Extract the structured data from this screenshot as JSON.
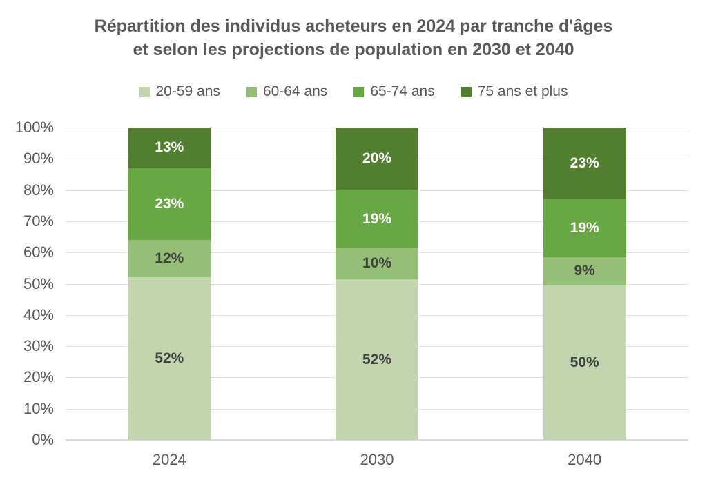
{
  "title": {
    "text": "Répartition des individus acheteurs en 2024  par tranche d'âges\net selon les projections de population en 2030 et 2040",
    "color": "#595959"
  },
  "chart_data": {
    "type": "bar",
    "variant": "stacked-100",
    "title": "Répartition des individus acheteurs en 2024  par tranche d'âges et selon les projections de population en 2030 et 2040",
    "categories": [
      "2024",
      "2030",
      "2040"
    ],
    "series": [
      {
        "name": "20-59 ans",
        "color": "#c3d5ae",
        "label_color": "#404040",
        "values": [
          52,
          52,
          50
        ],
        "labels": [
          "52%",
          "52%",
          "50%"
        ]
      },
      {
        "name": "60-64 ans",
        "color": "#95bf77",
        "label_color": "#404040",
        "values": [
          12,
          10,
          9
        ],
        "labels": [
          "12%",
          "10%",
          "9%"
        ]
      },
      {
        "name": "65-74 ans",
        "color": "#67a744",
        "label_color": "#ffffff",
        "values": [
          23,
          19,
          19
        ],
        "labels": [
          "23%",
          "19%",
          "19%"
        ]
      },
      {
        "name": "75 ans et plus",
        "color": "#527e30",
        "label_color": "#ffffff",
        "values": [
          13,
          20,
          23
        ],
        "labels": [
          "13%",
          "20%",
          "23%"
        ]
      }
    ],
    "y_axis": {
      "ticks": [
        "0%",
        "10%",
        "20%",
        "30%",
        "40%",
        "50%",
        "60%",
        "70%",
        "80%",
        "90%",
        "100%"
      ],
      "min": 0,
      "max": 100,
      "tick_color": "#595959"
    },
    "x_axis": {
      "tick_color": "#595959"
    },
    "grid": {
      "show": true,
      "color": "#e2e2e2",
      "axis_line_color": "#d9d9d9"
    },
    "legend": {
      "position": "top",
      "text_color": "#595959"
    }
  }
}
